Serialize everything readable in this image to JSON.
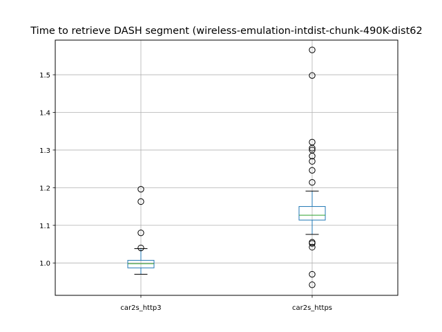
{
  "chart_data": {
    "type": "box",
    "title": "Time to retrieve DASH segment (wireless-emulation-intdist-chunk-490K-dist62",
    "xlabel": "",
    "ylabel": "",
    "categories": [
      "car2s_http3",
      "car2s_https"
    ],
    "ylim": [
      0.914,
      1.592
    ],
    "yticks": [
      1.0,
      1.1,
      1.2,
      1.3,
      1.4,
      1.5
    ],
    "ytick_labels": [
      "1.0",
      "1.1",
      "1.2",
      "1.3",
      "1.4",
      "1.5"
    ],
    "grid": true,
    "boxes": [
      {
        "whisker_low": 0.97,
        "q1": 0.987,
        "median": 0.998,
        "q3": 1.007,
        "whisker_high": 1.038,
        "outliers": [
          1.04,
          1.08,
          1.163,
          1.196
        ]
      },
      {
        "whisker_low": 1.076,
        "q1": 1.114,
        "median": 1.127,
        "q3": 1.15,
        "whisker_high": 1.191,
        "outliers": [
          0.942,
          0.97,
          1.042,
          1.052,
          1.055,
          1.214,
          1.246,
          1.27,
          1.284,
          1.3,
          1.305,
          1.321,
          1.498,
          1.566
        ]
      }
    ],
    "colors": {
      "box": "#1f77b4",
      "median": "#2ca02c",
      "grid": "#b0b0b0",
      "whisker": "#000000"
    }
  }
}
